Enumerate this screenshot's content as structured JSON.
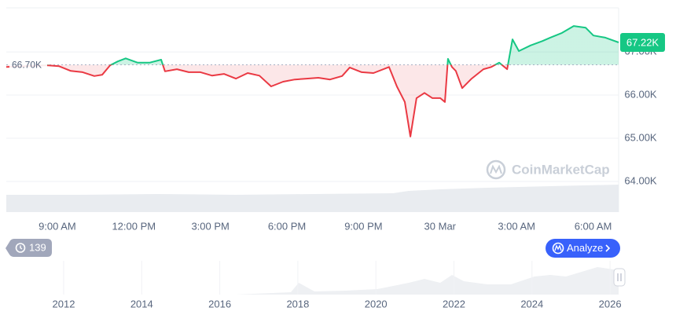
{
  "chart_data": {
    "type": "line",
    "x": [
      -2,
      -0.4,
      0.06,
      0.53,
      0.99,
      1.45,
      1.76,
      2.07,
      2.37,
      2.68,
      3.15,
      3.61,
      4.07,
      4.22,
      4.69,
      5.15,
      5.61,
      6.07,
      6.53,
      7.0,
      7.46,
      7.92,
      8.38,
      8.85,
      9.31,
      9.77,
      10.23,
      10.69,
      11.16,
      11.46,
      11.93,
      12.39,
      13.0,
      13.31,
      13.62,
      13.84,
      14.08,
      14.39,
      14.7,
      15.01,
      15.19,
      15.31,
      15.47,
      15.62,
      15.87,
      16.24,
      16.7,
      17.01,
      17.32,
      17.63,
      17.84,
      18.09,
      18.55,
      19.01,
      19.32,
      19.78,
      20.24,
      20.71,
      21.01,
      21.48,
      22
    ],
    "series": [
      {
        "values": [
          66.65,
          66.69,
          66.67,
          66.56,
          66.53,
          66.44,
          66.47,
          66.69,
          66.78,
          66.85,
          66.75,
          66.75,
          66.82,
          66.55,
          66.6,
          66.53,
          66.53,
          66.45,
          66.49,
          66.38,
          66.51,
          66.45,
          66.2,
          66.31,
          66.36,
          66.38,
          66.4,
          66.36,
          66.44,
          66.64,
          66.53,
          66.51,
          66.65,
          66.2,
          65.84,
          65.04,
          65.93,
          66.05,
          65.93,
          65.93,
          65.84,
          66.84,
          66.65,
          66.56,
          66.16,
          66.38,
          66.6,
          66.65,
          66.75,
          66.6,
          67.29,
          67.02,
          67.15,
          67.25,
          67.33,
          67.44,
          67.6,
          67.56,
          67.38,
          67.33,
          67.22
        ],
        "value_labels": [
          null,
          null,
          null,
          null,
          null,
          null,
          null,
          null,
          null,
          null,
          null,
          null,
          null,
          null,
          null,
          null,
          null,
          null,
          null,
          null,
          null,
          null,
          null,
          null,
          null,
          null,
          null,
          null,
          null,
          null,
          null,
          null,
          null,
          null,
          null,
          null,
          null,
          null,
          null,
          null,
          null,
          null,
          null,
          null,
          null,
          null,
          null,
          null,
          null,
          null,
          null,
          null,
          null,
          null,
          null,
          null,
          null,
          null,
          null,
          null,
          "67.22K"
        ]
      }
    ],
    "up_color": "#16c784",
    "down_color": "#ea3943",
    "baseline": {
      "value": 66.7,
      "label": "66.70K"
    },
    "xlim": [
      -2,
      22
    ],
    "xticks": [
      {
        "value": 0,
        "label": "9:00 AM"
      },
      {
        "value": 3,
        "label": "12:00 PM"
      },
      {
        "value": 6,
        "label": "3:00 PM"
      },
      {
        "value": 9,
        "label": "6:00 PM"
      },
      {
        "value": 12,
        "label": "9:00 PM"
      },
      {
        "value": 15,
        "label": "30 Mar"
      },
      {
        "value": 18,
        "label": "3:00 AM"
      },
      {
        "value": 21,
        "label": "6:00 AM"
      }
    ],
    "ylim": [
      63.29,
      68.02
    ],
    "yticks": [
      {
        "value": 64,
        "label": "64.00K"
      },
      {
        "value": 65,
        "label": "65.00K"
      },
      {
        "value": 66,
        "label": "66.00K"
      },
      {
        "value": 67,
        "label": "67.00K"
      }
    ],
    "grid": true,
    "watermark": "CoinMarketCap"
  },
  "controls": {
    "history_count": 139,
    "analyze": "Analyze"
  },
  "navigator": {
    "ticks": [
      2012,
      2014,
      2016,
      2018,
      2020,
      2022,
      2024,
      2026
    ]
  }
}
